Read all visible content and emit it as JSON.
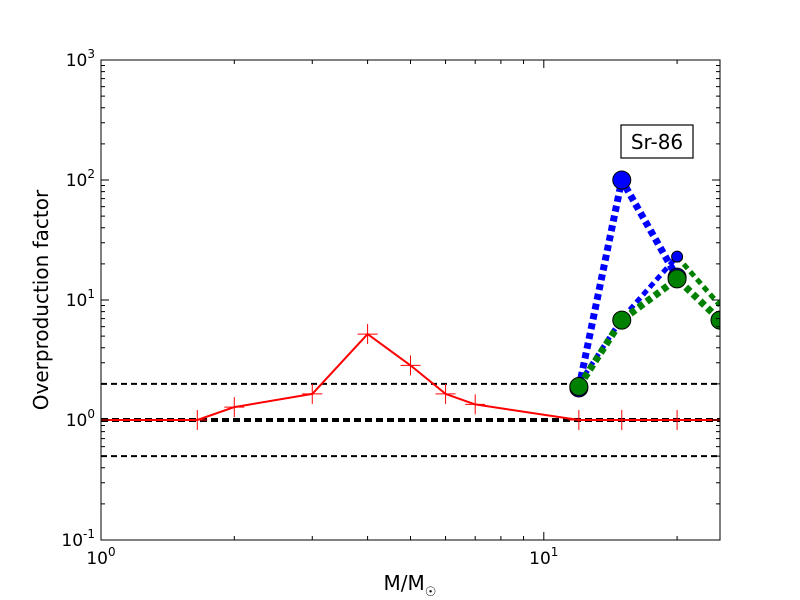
{
  "chart_data": {
    "type": "line",
    "xscale": "log",
    "yscale": "log",
    "xlim": [
      1,
      25
    ],
    "ylim": [
      0.1,
      1000
    ],
    "xlabel_main": "M/M",
    "xlabel_sub": "☉",
    "ylabel": "Overproduction factor",
    "x_ticks": [
      {
        "value": 1,
        "base": "10",
        "exp": "0"
      },
      {
        "value": 10,
        "base": "10",
        "exp": "1"
      }
    ],
    "y_ticks": [
      {
        "value": 0.1,
        "base": "10",
        "exp": "-1"
      },
      {
        "value": 1,
        "base": "10",
        "exp": "0"
      },
      {
        "value": 10,
        "base": "10",
        "exp": "1"
      },
      {
        "value": 100,
        "base": "10",
        "exp": "2"
      },
      {
        "value": 1000,
        "base": "10",
        "exp": "3"
      }
    ],
    "annotation": "Sr-86",
    "reference_lines": [
      {
        "y": 2.0,
        "color": "#000000",
        "width": 2,
        "dash": "6,4"
      },
      {
        "y": 1.0,
        "color": "#000000",
        "width": 4,
        "dash": "7,4"
      },
      {
        "y": 0.5,
        "color": "#000000",
        "width": 2,
        "dash": "6,4"
      }
    ],
    "series": [
      {
        "color": "#ff0000",
        "style": "solid",
        "width": 2,
        "marker": "plus",
        "x": [
          1.0,
          1.65,
          2.0,
          3.0,
          4.0,
          5.0,
          6.0,
          7.0,
          12.0,
          15.0,
          20.0,
          25.0
        ],
        "y": [
          1.0,
          1.0,
          1.28,
          1.65,
          5.2,
          2.85,
          1.65,
          1.35,
          1.0,
          1.0,
          1.0,
          1.0
        ]
      },
      {
        "color": "#0000ff",
        "style": "dotted",
        "width": 7,
        "marker": "circle",
        "x": [
          12.0,
          15.0,
          20.0
        ],
        "y": [
          1.85,
          100.0,
          15.5
        ]
      },
      {
        "color": "#0000ff",
        "style": "dotted",
        "width": 5,
        "marker": "small-circle",
        "x": [
          12.0,
          15.0,
          20.0
        ],
        "y": [
          2.0,
          7.0,
          23.0
        ]
      },
      {
        "color": "#008000",
        "style": "dotted",
        "width": 7,
        "marker": "circle",
        "x": [
          12.0,
          15.0,
          20.0,
          25.0
        ],
        "y": [
          1.9,
          6.8,
          15.0,
          6.8
        ]
      },
      {
        "color": "#008000",
        "style": "dotted",
        "width": 5,
        "marker": "none",
        "x": [
          20.0,
          25.0
        ],
        "y": [
          23.0,
          9.0
        ]
      }
    ]
  }
}
